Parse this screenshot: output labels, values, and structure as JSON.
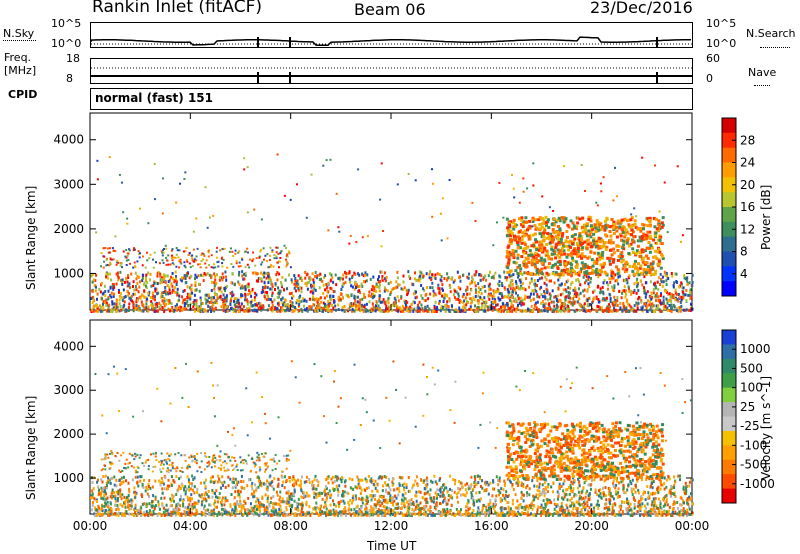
{
  "header": {
    "station": "Rankin Inlet (fitACF)",
    "beam": "Beam 06",
    "date": "23/Dec/2016"
  },
  "strips": {
    "nsky_label": "N.Sky",
    "nsearch_label": "N.Search",
    "freq_label_line1": "Freq.",
    "freq_label_line2": "[MHz]",
    "nave_label": "Nave",
    "cpid_label": "CPID",
    "nsky_ticks": [
      "10^5",
      "10^0"
    ],
    "nsearch_ticks": [
      "10^5",
      "10^0"
    ],
    "freq_ticks": [
      "18",
      "8"
    ],
    "nave_ticks": [
      "60",
      "0"
    ],
    "cpid_value": "normal (fast) 151"
  },
  "chart_data": [
    {
      "type": "heatmap",
      "name": "power",
      "ylabel": "Slant Range [km]",
      "yticks": [
        1000,
        2000,
        3000,
        4000
      ],
      "ylim": [
        180,
        4600
      ],
      "colorbar_label": "Power [dB]",
      "colorbar_ticks": [
        "28",
        "24",
        "20",
        "16",
        "12",
        "8",
        "4"
      ],
      "colorbar_colors": [
        "#d40000",
        "#ff2a00",
        "#ff6a00",
        "#ff9d00",
        "#f2c200",
        "#b8c530",
        "#5fa34a",
        "#3d8f5e",
        "#2d6f8f",
        "#1f4fb0",
        "#0033ff",
        "#0000ff"
      ]
    },
    {
      "type": "heatmap",
      "name": "velocity",
      "ylabel": "Slant Range [km]",
      "yticks": [
        1000,
        2000,
        3000,
        4000
      ],
      "ylim": [
        180,
        4600
      ],
      "colorbar_label": "Velocity [m s^-1]",
      "colorbar_ticks": [
        "1000",
        "500",
        "100",
        "25",
        "-25",
        "-100",
        "-500",
        "-1000"
      ],
      "colorbar_colors": [
        "#1a3fd6",
        "#2e6fa6",
        "#2e8a6a",
        "#3f9f48",
        "#7fcf3e",
        "#b4b4b4",
        "#c8c8c8",
        "#f5c000",
        "#ffa000",
        "#ff7a00",
        "#ff4a00",
        "#e80000"
      ],
      "xlabel": "Time UT",
      "xticks": [
        "00:00",
        "04:00",
        "08:00",
        "12:00",
        "16:00",
        "20:00",
        "00:00"
      ]
    }
  ]
}
